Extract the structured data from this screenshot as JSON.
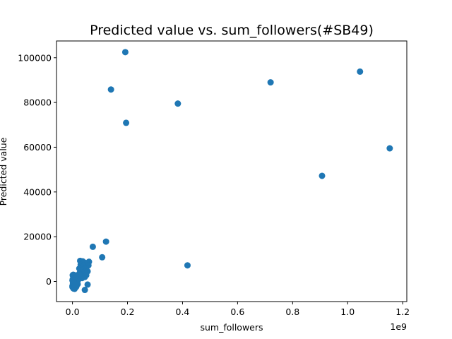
{
  "chart_data": {
    "type": "scatter",
    "title": "Predicted value vs. sum_followers(#SB49)",
    "xlabel": "sum_followers",
    "ylabel": "Predicted value",
    "x_offset_label": "1e9",
    "x_scale": 1000000000,
    "xlim": [
      -0.058,
      1.215
    ],
    "ylim": [
      -9000,
      107500
    ],
    "x_ticks": [
      0.0,
      0.2,
      0.4,
      0.6,
      0.8,
      1.0,
      1.2
    ],
    "x_tick_labels": [
      "0.0",
      "0.2",
      "0.4",
      "0.6",
      "0.8",
      "1.0",
      "1.2"
    ],
    "y_ticks": [
      0,
      20000,
      40000,
      60000,
      80000,
      100000
    ],
    "y_tick_labels": [
      "0",
      "20000",
      "40000",
      "60000",
      "80000",
      "100000"
    ],
    "grid": false,
    "marker_color": "#1f77b4",
    "series": [
      {
        "x": [
          0.192,
          0.14,
          0.383,
          0.195,
          0.72,
          1.045,
          1.153,
          0.907,
          0.418,
          0.122,
          0.074,
          0.108,
          0.055,
          0.045,
          0.06,
          0.055,
          0.05,
          0.04,
          0.035,
          0.03,
          0.028,
          0.032,
          0.037,
          0.042,
          0.048,
          0.053,
          0.058,
          0.03,
          0.035,
          0.04,
          0.045,
          0.05,
          0.055,
          0.033,
          0.038,
          0.043,
          0.048,
          0.025,
          0.028,
          0.032,
          0.036,
          0.04,
          0.045,
          0.05,
          0.025,
          0.03,
          0.035,
          0.0,
          0.002,
          0.004,
          0.006,
          0.008,
          0.01,
          0.012,
          0.015,
          0.018,
          0.02,
          0.022,
          0.025,
          0.0,
          0.003,
          0.005,
          0.007,
          0.01,
          0.012,
          0.015,
          0.018,
          0.02,
          0.001,
          0.004,
          0.006,
          0.009,
          0.011,
          0.014,
          0.017,
          0.02,
          0.002,
          0.005,
          0.008,
          0.01,
          0.013,
          0.016,
          0.019,
          0.001,
          0.003,
          0.006,
          0.009,
          0.012,
          0.015,
          0.0,
          0.002,
          0.005,
          0.008,
          0.011,
          0.014,
          0.003,
          0.007,
          0.01,
          0.013,
          0.016,
          0.004,
          0.008,
          0.012,
          0.002,
          0.006,
          0.009,
          0.005,
          0.009
        ],
        "y": [
          102500,
          85800,
          79500,
          70900,
          89000,
          93800,
          59500,
          47200,
          7200,
          17800,
          15500,
          10800,
          -1400,
          -3800,
          8800,
          7800,
          6500,
          5500,
          4800,
          4000,
          9200,
          8600,
          9000,
          8500,
          8200,
          7800,
          7200,
          7500,
          7000,
          6800,
          6000,
          5500,
          4500,
          6200,
          5200,
          4200,
          3500,
          5800,
          5000,
          4200,
          3000,
          2500,
          2000,
          2800,
          3500,
          2800,
          1500,
          -2000,
          -1500,
          -1000,
          -500,
          0,
          500,
          1000,
          1500,
          2000,
          2500,
          3000,
          3200,
          -2500,
          -3000,
          -2800,
          -2000,
          -1200,
          -800,
          0,
          800,
          1200,
          2800,
          2500,
          2200,
          1800,
          1500,
          1200,
          1000,
          500,
          -500,
          0,
          200,
          -200,
          -600,
          -900,
          -1200,
          1000,
          1500,
          1800,
          2200,
          2600,
          2000,
          500,
          -1000,
          -1800,
          -2400,
          -2700,
          -2300,
          3000,
          2800,
          2400,
          1600,
          800,
          -3200,
          -3300,
          -2600,
          200,
          600,
          400,
          -400,
          -1600
        ]
      }
    ]
  }
}
